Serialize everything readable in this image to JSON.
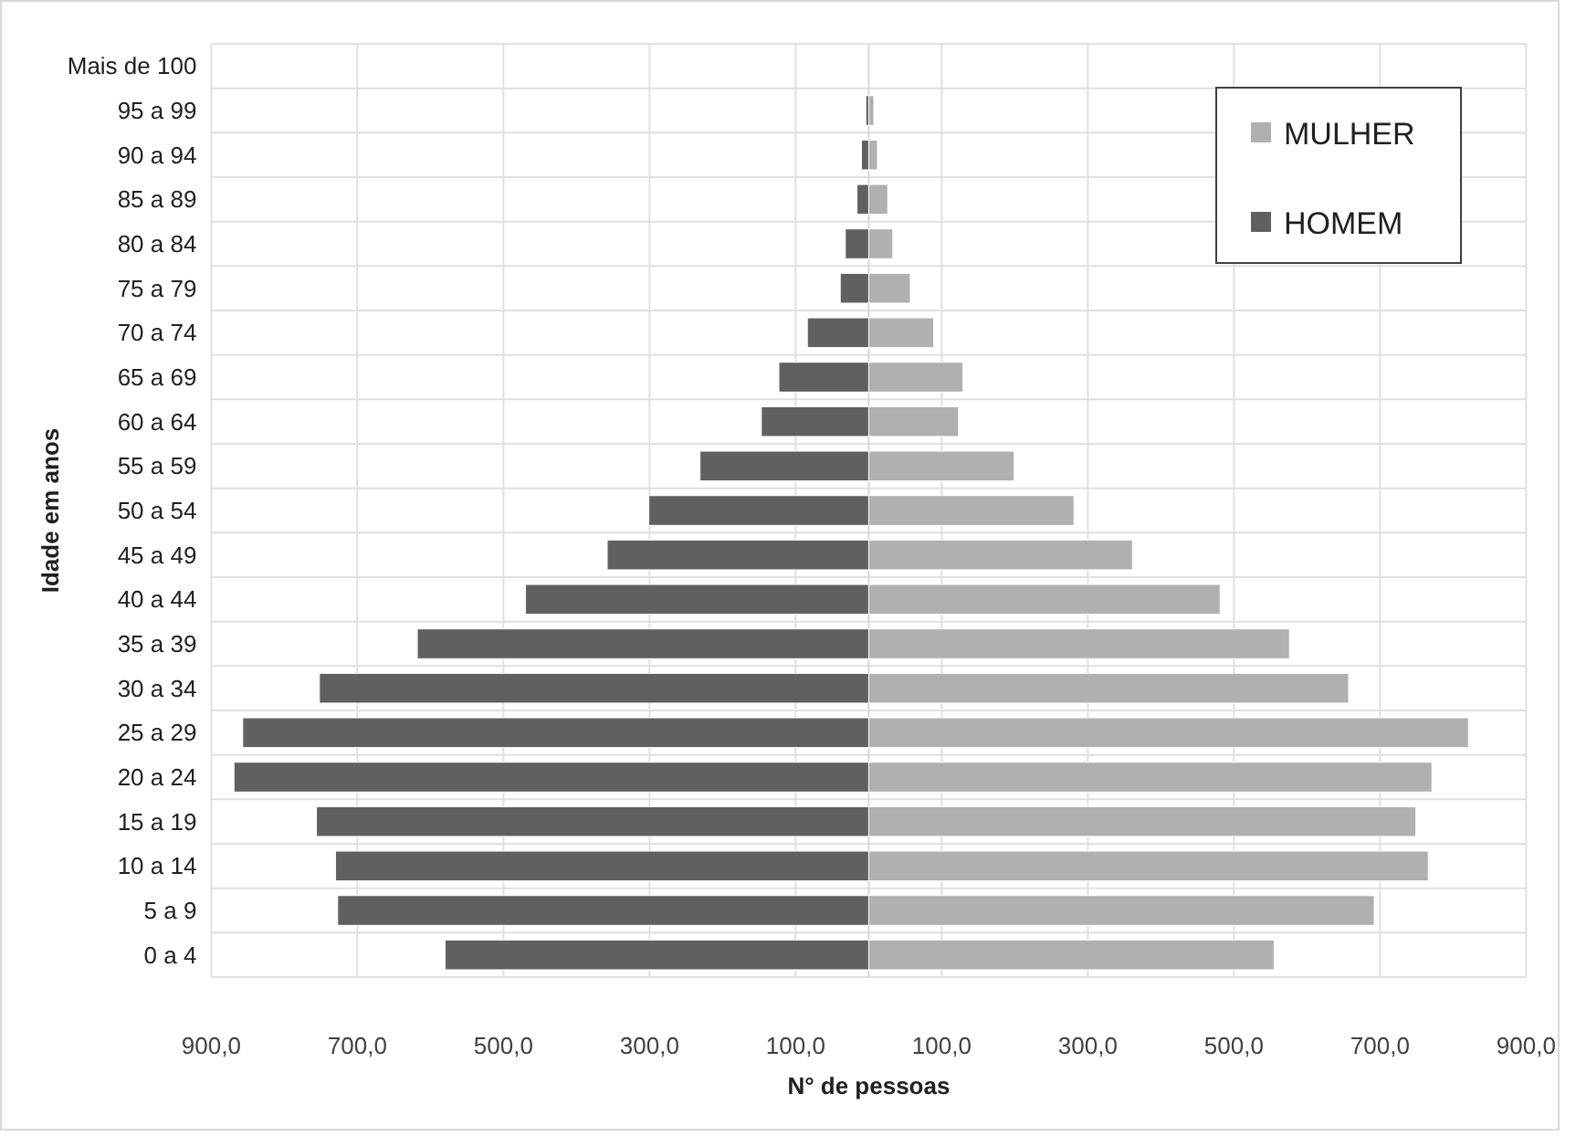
{
  "chart_data": {
    "type": "bar",
    "orientation": "horizontal",
    "stacked": true,
    "xlabel": "N° de pessoas",
    "ylabel": "Idade em anos",
    "categories": [
      "Mais de 100",
      "95 a 99",
      "90 a 94",
      "85 a 89",
      "80 a 84",
      "75 a 79",
      "70 a 74",
      "65 a 69",
      "60 a 64",
      "55 a 59",
      "50 a 54",
      "45 a 49",
      "40 a 44",
      "35 a 39",
      "30 a 34",
      "25 a 29",
      "20 a 24",
      "15 a 19",
      "10 a 14",
      "5 a 9",
      "0 a 4"
    ],
    "series": [
      {
        "name": "MULHER",
        "color": "#b0b0b0",
        "values": [
          null,
          7,
          12,
          26,
          33,
          57,
          89,
          129,
          123,
          199,
          281,
          361,
          481,
          576,
          657,
          821,
          771,
          749,
          766,
          692,
          555
        ]
      },
      {
        "name": "HOMEM",
        "color": "#606060",
        "values": [
          null,
          -4,
          -10,
          -16,
          -32,
          -39,
          -84,
          -123,
          -147,
          -231,
          -301,
          -358,
          -470,
          -618,
          -752,
          -857,
          -869,
          -756,
          -730,
          -727,
          -580
        ]
      }
    ],
    "xlim": [
      -900,
      900
    ],
    "xticks": [
      {
        "value": -900,
        "label": "900,0"
      },
      {
        "value": -700,
        "label": "700,0"
      },
      {
        "value": -500,
        "label": "500,0"
      },
      {
        "value": -300,
        "label": "300,0"
      },
      {
        "value": -100,
        "label": "100,0"
      },
      {
        "value": 100,
        "label": "100,0"
      },
      {
        "value": 300,
        "label": "300,0"
      },
      {
        "value": 500,
        "label": "500,0"
      },
      {
        "value": 700,
        "label": "700,0"
      },
      {
        "value": 900,
        "label": "900,0"
      }
    ],
    "grid": true,
    "legend": "top right"
  }
}
